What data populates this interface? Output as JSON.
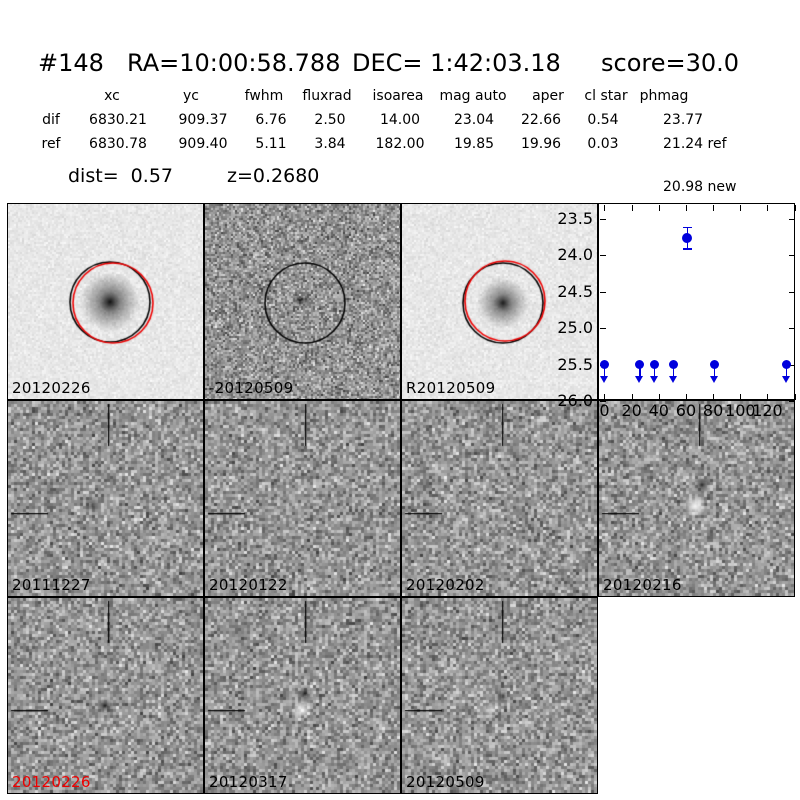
{
  "header": {
    "candidate_id": "#148",
    "ra": "RA=10:00:58.788",
    "dec": "DEC= 1:42:03.18",
    "score": "score=30.0"
  },
  "photometry_table": {
    "columns": [
      "xc",
      "yc",
      "fwhm",
      "fluxrad",
      "isoarea",
      "mag auto",
      "aper",
      "cl star",
      "phmag"
    ],
    "rows": [
      {
        "label": "dif",
        "values": [
          "6830.21",
          "909.37",
          "6.76",
          "2.50",
          "14.00",
          "23.04",
          "22.66",
          "0.54",
          "23.77"
        ]
      },
      {
        "label": "ref",
        "values": [
          "6830.78",
          "909.40",
          "5.11",
          "3.84",
          "182.00",
          "19.85",
          "19.96",
          "0.03",
          "21.24 ref"
        ]
      }
    ],
    "extra_phmag": "20.98 new"
  },
  "summary": {
    "dist": "dist=  0.57",
    "z": "z=0.2680"
  },
  "cutouts": {
    "row1": [
      {
        "label": "20120226",
        "kind": "new-image"
      },
      {
        "label": "-20120509",
        "kind": "difference-image"
      },
      {
        "label": "R20120509",
        "kind": "reference-image"
      }
    ],
    "row2": [
      {
        "label": "20111227"
      },
      {
        "label": "20120122"
      },
      {
        "label": "20120202"
      },
      {
        "label": "20120216"
      }
    ],
    "row3": [
      {
        "label": "20120226",
        "highlight": true
      },
      {
        "label": "20120317"
      },
      {
        "label": "20120509"
      }
    ]
  },
  "chart_data": {
    "type": "scatter",
    "title": "",
    "xlabel": "",
    "ylabel": "",
    "x_unit": "days since first epoch",
    "xlim": [
      -4,
      141
    ],
    "ylim": [
      26.0,
      23.3
    ],
    "y_inverted": true,
    "grid": false,
    "legend": "none",
    "xticks": [
      0,
      20,
      40,
      60,
      80,
      100,
      120
    ],
    "xticks_unlabeled": [
      140
    ],
    "yticks": [
      "23.5",
      "24.0",
      "24.5",
      "25.0",
      "25.5",
      "26.0"
    ],
    "series": [
      {
        "name": "upper-limits",
        "marker": "circle-down-arrow",
        "color": "#0000dd",
        "x": [
          0,
          26,
          37,
          51,
          81,
          134
        ],
        "y": [
          25.5,
          25.5,
          25.5,
          25.5,
          25.5,
          25.5
        ]
      },
      {
        "name": "detection",
        "marker": "circle-errorbar",
        "color": "#0000dd",
        "x": [
          61
        ],
        "y": [
          23.77
        ],
        "yerr": [
          0.15
        ]
      }
    ]
  },
  "colors": {
    "marker_blue": "#0000dd",
    "circle_red": "#ee0000",
    "circle_black": "#000000",
    "highlight_label_red": "#ee0000"
  }
}
